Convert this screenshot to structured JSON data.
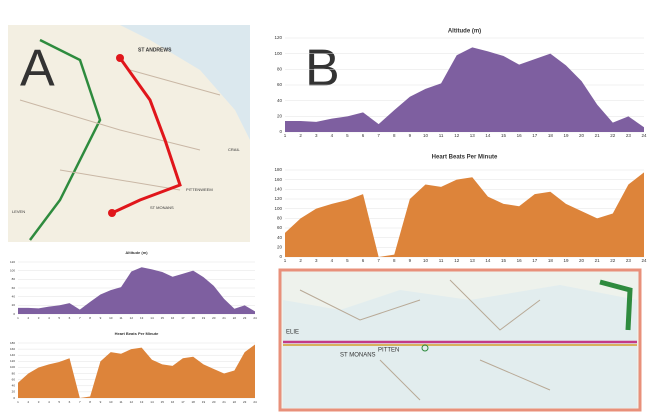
{
  "panels": [
    "A",
    "B"
  ],
  "maps": {
    "a_labels": [
      "ST ANDREWS",
      "PITTENWEEM",
      "ST MONANS",
      "LEVEN",
      "CRAIL"
    ],
    "b_labels": [
      "ST MONANS",
      "PITTEN",
      "ELIE"
    ]
  },
  "chart_data": [
    {
      "type": "area",
      "title": "Altitude (m)",
      "categories": [
        "1",
        "2",
        "3",
        "4",
        "5",
        "6",
        "7",
        "8",
        "9",
        "10",
        "11",
        "12",
        "13",
        "14",
        "15",
        "16",
        "17",
        "18",
        "19",
        "20",
        "21",
        "22",
        "23",
        "24"
      ],
      "values": [
        14,
        14,
        13,
        17,
        20,
        25,
        10,
        28,
        45,
        55,
        62,
        98,
        108,
        103,
        97,
        86,
        93,
        100,
        85,
        65,
        35,
        12,
        20,
        6
      ],
      "color": "#7e5fa0",
      "ylim": [
        0,
        120
      ],
      "yticks": [
        0,
        20,
        40,
        60,
        80,
        100,
        120
      ],
      "grid": true
    },
    {
      "type": "area",
      "title": "Heart Beats Per Minute",
      "categories": [
        "1",
        "2",
        "3",
        "4",
        "5",
        "6",
        "7",
        "8",
        "9",
        "10",
        "11",
        "12",
        "13",
        "14",
        "15",
        "16",
        "17",
        "18",
        "19",
        "20",
        "21",
        "22",
        "23",
        "24"
      ],
      "values": [
        50,
        80,
        100,
        110,
        118,
        130,
        0,
        5,
        120,
        150,
        145,
        160,
        165,
        125,
        110,
        105,
        130,
        135,
        110,
        95,
        80,
        90,
        150,
        175
      ],
      "color": "#dd843a",
      "ylim": [
        0,
        180
      ],
      "yticks": [
        0,
        20,
        40,
        60,
        80,
        100,
        120,
        140,
        160,
        180
      ],
      "grid": true
    },
    {
      "type": "area",
      "title": "Altitude (m)",
      "categories": [
        "1",
        "2",
        "3",
        "4",
        "5",
        "6",
        "7",
        "8",
        "9",
        "10",
        "11",
        "12",
        "13",
        "14",
        "15",
        "16",
        "17",
        "18",
        "19",
        "20",
        "21",
        "22",
        "23",
        "24"
      ],
      "values": [
        14,
        14,
        13,
        17,
        20,
        25,
        10,
        28,
        45,
        55,
        62,
        98,
        108,
        103,
        97,
        86,
        93,
        100,
        85,
        65,
        35,
        12,
        20,
        6
      ],
      "color": "#7e5fa0",
      "ylim": [
        0,
        120
      ],
      "yticks": [
        0,
        20,
        40,
        60,
        80,
        100,
        120
      ],
      "grid": true
    },
    {
      "type": "area",
      "title": "Heart Beats Per Minute",
      "categories": [
        "1",
        "2",
        "3",
        "4",
        "5",
        "6",
        "7",
        "8",
        "9",
        "10",
        "11",
        "12",
        "13",
        "14",
        "15",
        "16",
        "17",
        "18",
        "19",
        "20",
        "21",
        "22",
        "23",
        "24"
      ],
      "values": [
        50,
        80,
        100,
        110,
        118,
        130,
        0,
        5,
        120,
        150,
        145,
        160,
        165,
        125,
        110,
        105,
        130,
        135,
        110,
        95,
        80,
        90,
        150,
        175
      ],
      "color": "#dd843a",
      "ylim": [
        0,
        180
      ],
      "yticks": [
        0,
        20,
        40,
        60,
        80,
        100,
        120,
        140,
        160,
        180
      ],
      "grid": true
    }
  ]
}
